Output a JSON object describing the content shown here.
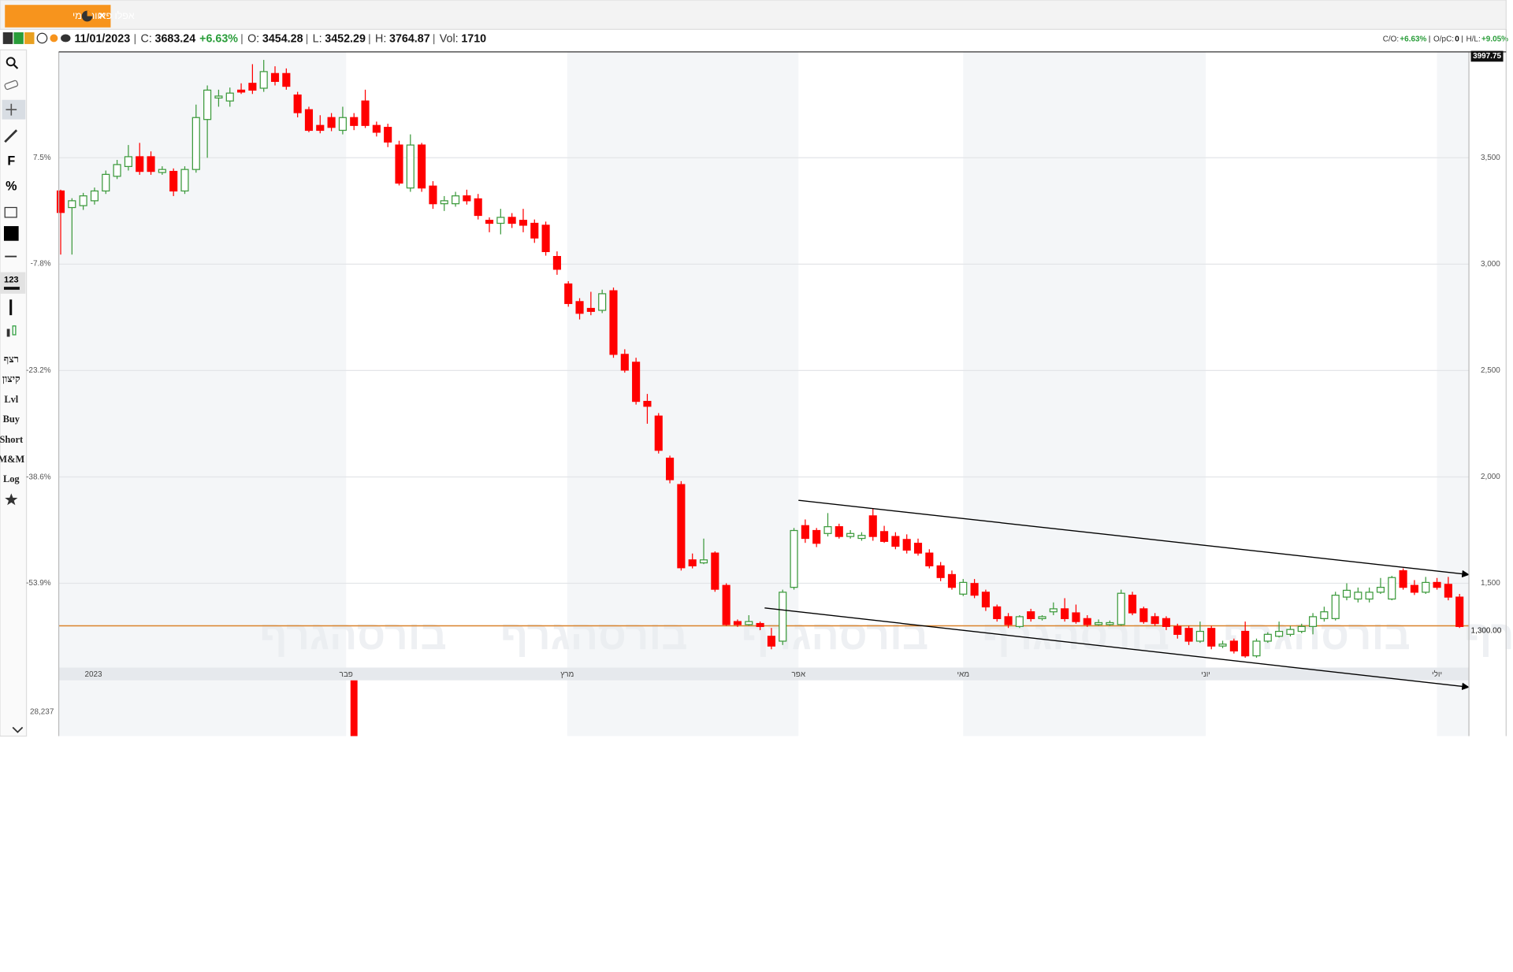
{
  "header": {
    "tab_title": "אפלו פאוור יומי",
    "close_icon": "×",
    "date": "11/01/2023",
    "fields": [
      {
        "label": "C:",
        "value": "3683.24",
        "change": "+6.63%"
      },
      {
        "label": "O:",
        "value": "3454.28"
      },
      {
        "label": "L:",
        "value": "3452.29"
      },
      {
        "label": "H:",
        "value": "3764.87"
      },
      {
        "label": "Vol:",
        "value": "1710"
      }
    ],
    "stats": [
      {
        "label": "C/O:",
        "value": "+6.63%"
      },
      {
        "label": "O/pC:",
        "value": "0"
      },
      {
        "label": "H/L:",
        "value": "+9.05%"
      }
    ]
  },
  "toolbar": {
    "tools": [
      "F",
      "%",
      "123",
      "רצף",
      "קיצון",
      "Lvl",
      "Buy",
      "Short",
      "M&M",
      "Log"
    ]
  },
  "chart_data": {
    "type": "candlestick",
    "watermark": "בורסהגרף",
    "up_color": "#3c9a3c",
    "down_color": "#ff0000",
    "grid": true,
    "xlim": [
      -0.17,
      124.83
    ],
    "xticks": [
      {
        "value": 2.9,
        "label": "2023"
      },
      {
        "value": 25.3,
        "label": "פבר"
      },
      {
        "value": 44.9,
        "label": "מרץ"
      },
      {
        "value": 65.4,
        "label": "אפר"
      },
      {
        "value": 80,
        "label": "מאי"
      },
      {
        "value": 101.5,
        "label": "יוני"
      },
      {
        "value": 122,
        "label": "יולי"
      }
    ],
    "ylim": [
      1113,
      3997.75
    ],
    "yticks": [
      {
        "value": 1500,
        "label": "1,500"
      },
      {
        "value": 2000,
        "label": "2,000"
      },
      {
        "value": 2500,
        "label": "2,500"
      },
      {
        "value": 3000,
        "label": "3,000"
      },
      {
        "value": 3500,
        "label": "3,500"
      }
    ],
    "y2lim": [
      -65.8,
      22.78
    ],
    "y2ticks": [
      {
        "value": -53.9,
        "label": "-53.9%"
      },
      {
        "value": -38.6,
        "label": "-38.6%"
      },
      {
        "value": -23.2,
        "label": "-23.2%"
      },
      {
        "value": -7.8,
        "label": "-7.8%"
      },
      {
        "value": 7.5,
        "label": "7.5%"
      }
    ],
    "reference_line": {
      "value": 1300,
      "label": "1,300.00",
      "color": "#d9822b"
    },
    "trendlines": [
      {
        "x": [
          65.4,
          124.8
        ],
        "y": [
          1890,
          1541
        ],
        "color": "#000000"
      },
      {
        "x": [
          62.4,
          124.8
        ],
        "y": [
          1384,
          1012
        ],
        "color": "#000000"
      }
    ],
    "candles": [
      [
        3344,
        3350,
        3045,
        3243
      ],
      [
        3266,
        3310,
        3045,
        3298
      ],
      [
        3275,
        3335,
        3255,
        3321
      ],
      [
        3298,
        3360,
        3280,
        3344
      ],
      [
        3344,
        3440,
        3330,
        3422
      ],
      [
        3413,
        3490,
        3400,
        3468
      ],
      [
        3459,
        3560,
        3440,
        3505
      ],
      [
        3505,
        3570,
        3420,
        3436
      ],
      [
        3505,
        3530,
        3420,
        3436
      ],
      [
        3431,
        3460,
        3420,
        3445
      ],
      [
        3436,
        3450,
        3320,
        3344
      ],
      [
        3344,
        3460,
        3330,
        3445
      ],
      [
        3445,
        3750,
        3430,
        3689
      ],
      [
        3680,
        3840,
        3500,
        3818
      ],
      [
        3781,
        3820,
        3740,
        3790
      ],
      [
        3767,
        3830,
        3740,
        3804
      ],
      [
        3818,
        3850,
        3800,
        3809
      ],
      [
        3850,
        3940,
        3800,
        3818
      ],
      [
        3827,
        3960,
        3810,
        3905
      ],
      [
        3896,
        3930,
        3840,
        3859
      ],
      [
        3896,
        3920,
        3820,
        3836
      ],
      [
        3795,
        3810,
        3690,
        3712
      ],
      [
        3726,
        3740,
        3620,
        3629
      ],
      [
        3652,
        3700,
        3615,
        3629
      ],
      [
        3689,
        3710,
        3625,
        3643
      ],
      [
        3629,
        3740,
        3610,
        3689
      ],
      [
        3689,
        3710,
        3630,
        3652
      ],
      [
        3767,
        3820,
        3640,
        3652
      ],
      [
        3652,
        3670,
        3600,
        3620
      ],
      [
        3643,
        3660,
        3550,
        3574
      ],
      [
        3560,
        3580,
        3370,
        3381
      ],
      [
        3358,
        3610,
        3340,
        3560
      ],
      [
        3560,
        3570,
        3340,
        3358
      ],
      [
        3367,
        3390,
        3260,
        3284
      ],
      [
        3284,
        3320,
        3250,
        3298
      ],
      [
        3284,
        3340,
        3270,
        3321
      ],
      [
        3321,
        3350,
        3280,
        3298
      ],
      [
        3307,
        3330,
        3210,
        3229
      ],
      [
        3206,
        3220,
        3150,
        3192
      ],
      [
        3192,
        3260,
        3140,
        3220
      ],
      [
        3220,
        3240,
        3170,
        3192
      ],
      [
        3206,
        3260,
        3150,
        3183
      ],
      [
        3192,
        3210,
        3100,
        3123
      ],
      [
        3183,
        3200,
        3040,
        3059
      ],
      [
        3036,
        3060,
        2950,
        2976
      ],
      [
        2907,
        2920,
        2800,
        2815
      ],
      [
        2824,
        2840,
        2740,
        2769
      ],
      [
        2792,
        2870,
        2760,
        2778
      ],
      [
        2783,
        2880,
        2770,
        2861
      ],
      [
        2875,
        2890,
        2560,
        2576
      ],
      [
        2576,
        2600,
        2490,
        2502
      ],
      [
        2539,
        2560,
        2340,
        2355
      ],
      [
        2355,
        2390,
        2250,
        2332
      ],
      [
        2286,
        2300,
        2110,
        2125
      ],
      [
        2088,
        2100,
        1970,
        1987
      ],
      [
        1964,
        1980,
        1560,
        1573
      ],
      [
        1610,
        1640,
        1570,
        1582
      ],
      [
        1596,
        1710,
        1590,
        1610
      ],
      [
        1642,
        1650,
        1460,
        1472
      ],
      [
        1490,
        1500,
        1300,
        1306
      ],
      [
        1320,
        1330,
        1295,
        1306
      ],
      [
        1306,
        1350,
        1300,
        1320
      ],
      [
        1311,
        1320,
        1280,
        1297
      ],
      [
        1251,
        1290,
        1190,
        1205
      ],
      [
        1228,
        1470,
        1210,
        1458
      ],
      [
        1481,
        1760,
        1470,
        1748
      ],
      [
        1771,
        1800,
        1690,
        1711
      ],
      [
        1748,
        1760,
        1670,
        1688
      ],
      [
        1734,
        1830,
        1720,
        1766
      ],
      [
        1766,
        1780,
        1710,
        1720
      ],
      [
        1720,
        1750,
        1710,
        1734
      ],
      [
        1711,
        1740,
        1700,
        1725
      ],
      [
        1817,
        1850,
        1700,
        1720
      ],
      [
        1743,
        1770,
        1690,
        1697
      ],
      [
        1720,
        1740,
        1660,
        1674
      ],
      [
        1706,
        1730,
        1640,
        1656
      ],
      [
        1688,
        1710,
        1630,
        1642
      ],
      [
        1642,
        1660,
        1570,
        1582
      ],
      [
        1582,
        1600,
        1510,
        1527
      ],
      [
        1541,
        1560,
        1470,
        1481
      ],
      [
        1449,
        1520,
        1440,
        1504
      ],
      [
        1499,
        1520,
        1430,
        1444
      ],
      [
        1458,
        1470,
        1370,
        1389
      ],
      [
        1389,
        1400,
        1320,
        1334
      ],
      [
        1343,
        1360,
        1290,
        1306
      ],
      [
        1297,
        1350,
        1290,
        1343
      ],
      [
        1366,
        1380,
        1320,
        1334
      ],
      [
        1334,
        1350,
        1325,
        1343
      ],
      [
        1366,
        1410,
        1350,
        1380
      ],
      [
        1380,
        1430,
        1320,
        1334
      ],
      [
        1361,
        1400,
        1310,
        1320
      ],
      [
        1334,
        1350,
        1295,
        1306
      ],
      [
        1306,
        1330,
        1300,
        1315
      ],
      [
        1306,
        1325,
        1300,
        1315
      ],
      [
        1306,
        1470,
        1300,
        1453
      ],
      [
        1444,
        1460,
        1350,
        1361
      ],
      [
        1380,
        1390,
        1310,
        1320
      ],
      [
        1343,
        1360,
        1300,
        1311
      ],
      [
        1334,
        1345,
        1280,
        1297
      ],
      [
        1297,
        1310,
        1240,
        1260
      ],
      [
        1288,
        1300,
        1210,
        1228
      ],
      [
        1228,
        1320,
        1220,
        1274
      ],
      [
        1288,
        1300,
        1190,
        1205
      ],
      [
        1205,
        1230,
        1195,
        1214
      ],
      [
        1228,
        1240,
        1170,
        1182
      ],
      [
        1274,
        1320,
        1150,
        1159
      ],
      [
        1159,
        1240,
        1150,
        1228
      ],
      [
        1228,
        1270,
        1220,
        1260
      ],
      [
        1251,
        1320,
        1245,
        1274
      ],
      [
        1260,
        1300,
        1250,
        1283
      ],
      [
        1274,
        1310,
        1265,
        1297
      ],
      [
        1297,
        1360,
        1260,
        1343
      ],
      [
        1334,
        1390,
        1320,
        1366
      ],
      [
        1334,
        1460,
        1325,
        1444
      ],
      [
        1435,
        1500,
        1420,
        1467
      ],
      [
        1426,
        1480,
        1410,
        1458
      ],
      [
        1426,
        1480,
        1410,
        1458
      ],
      [
        1458,
        1525,
        1450,
        1481
      ],
      [
        1426,
        1535,
        1420,
        1527
      ],
      [
        1559,
        1570,
        1470,
        1481
      ],
      [
        1490,
        1515,
        1445,
        1458
      ],
      [
        1458,
        1530,
        1450,
        1504
      ],
      [
        1504,
        1525,
        1470,
        1481
      ],
      [
        1495,
        1530,
        1420,
        1435
      ],
      [
        1435,
        1450,
        1290,
        1297
      ]
    ],
    "volume": {
      "x": [
        26
      ],
      "values": [
        40000
      ],
      "ylim": [
        0,
        40000
      ],
      "yticks": [
        {
          "value": 28237,
          "label": "28,237"
        }
      ],
      "color": "#ff0000"
    }
  }
}
